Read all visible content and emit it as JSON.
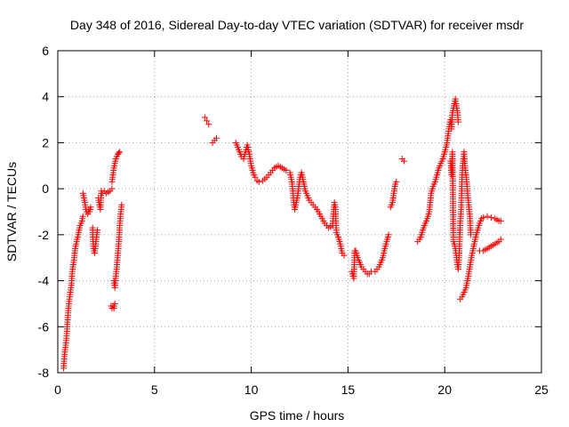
{
  "chart_data": {
    "type": "scatter",
    "title": "Day 348 of 2016, Sidereal Day-to-day VTEC variation (SDTVAR) for receiver msdr",
    "xlabel": "GPS time / hours",
    "ylabel": "SDTVAR / TECUs",
    "xlim": [
      0,
      25
    ],
    "ylim": [
      -8,
      6
    ],
    "xticks": [
      "0",
      "5",
      "10",
      "15",
      "20",
      "25"
    ],
    "yticks": [
      "-8",
      "-6",
      "-4",
      "-2",
      "0",
      "2",
      "4",
      "6"
    ],
    "grid": true,
    "marker": "+",
    "color": "#ff0000",
    "series": [
      {
        "name": "msdr",
        "segments": [
          [
            [
              0.3,
              -7.8
            ],
            [
              0.35,
              -7.2
            ],
            [
              0.45,
              -6.5
            ],
            [
              0.5,
              -5.8
            ],
            [
              0.55,
              -5.2
            ],
            [
              0.6,
              -4.8
            ],
            [
              0.7,
              -4.2
            ],
            [
              0.75,
              -3.6
            ],
            [
              0.85,
              -3.0
            ],
            [
              0.9,
              -2.6
            ],
            [
              1.0,
              -2.2
            ],
            [
              1.05,
              -2.0
            ],
            [
              1.1,
              -1.8
            ],
            [
              1.15,
              -1.6
            ],
            [
              1.2,
              -1.5
            ],
            [
              1.25,
              -1.4
            ],
            [
              1.3,
              -1.2
            ]
          ],
          [
            [
              1.3,
              -0.2
            ],
            [
              1.35,
              -0.4
            ],
            [
              1.4,
              -0.6
            ],
            [
              1.45,
              -0.9
            ],
            [
              1.5,
              -1.0
            ],
            [
              1.55,
              -1.1
            ],
            [
              1.6,
              -0.9
            ],
            [
              1.65,
              -1.0
            ],
            [
              1.7,
              -0.8
            ]
          ],
          [
            [
              1.8,
              -1.7
            ],
            [
              1.8,
              -2.0
            ],
            [
              1.85,
              -2.6
            ],
            [
              1.9,
              -2.8
            ],
            [
              1.95,
              -2.5
            ],
            [
              2.0,
              -2.1
            ],
            [
              2.05,
              -1.8
            ]
          ],
          [
            [
              2.1,
              -0.4
            ],
            [
              2.15,
              -0.7
            ],
            [
              2.2,
              -0.9
            ],
            [
              2.25,
              -0.1
            ],
            [
              2.3,
              -0.2
            ],
            [
              2.4,
              -0.1
            ],
            [
              2.5,
              -0.2
            ],
            [
              2.6,
              -0.15
            ],
            [
              2.7,
              -0.1
            ],
            [
              2.8,
              0.0
            ]
          ],
          [
            [
              2.75,
              -5.1
            ],
            [
              2.8,
              -5.2
            ],
            [
              2.85,
              -5.1
            ],
            [
              2.9,
              -5.2
            ],
            [
              2.95,
              -5.0
            ]
          ],
          [
            [
              2.8,
              0.3
            ],
            [
              2.85,
              0.6
            ],
            [
              2.9,
              0.9
            ],
            [
              2.95,
              1.1
            ],
            [
              3.0,
              1.3
            ],
            [
              3.05,
              1.4
            ],
            [
              3.1,
              1.5
            ],
            [
              3.15,
              1.55
            ],
            [
              3.2,
              1.6
            ]
          ],
          [
            [
              2.9,
              -4.0
            ],
            [
              2.95,
              -4.3
            ],
            [
              3.0,
              -3.8
            ],
            [
              3.05,
              -3.4
            ],
            [
              3.1,
              -2.9
            ],
            [
              3.15,
              -2.4
            ],
            [
              3.2,
              -1.6
            ],
            [
              3.25,
              -1.1
            ],
            [
              3.3,
              -0.7
            ]
          ],
          [
            [
              7.6,
              3.1
            ],
            [
              7.7,
              2.95
            ],
            [
              7.8,
              2.8
            ]
          ],
          [
            [
              8.0,
              2.0
            ],
            [
              8.1,
              2.1
            ],
            [
              8.2,
              2.2
            ]
          ],
          [
            [
              9.2,
              2.0
            ],
            [
              9.3,
              1.8
            ],
            [
              9.4,
              1.6
            ],
            [
              9.5,
              1.4
            ],
            [
              9.6,
              1.3
            ],
            [
              9.7,
              1.6
            ],
            [
              9.8,
              1.9
            ],
            [
              9.9,
              1.5
            ],
            [
              10.0,
              1.0
            ],
            [
              10.1,
              0.7
            ],
            [
              10.2,
              0.5
            ],
            [
              10.3,
              0.35
            ],
            [
              10.4,
              0.3
            ],
            [
              10.6,
              0.35
            ],
            [
              10.8,
              0.5
            ],
            [
              11.0,
              0.7
            ],
            [
              11.2,
              0.9
            ],
            [
              11.4,
              1.0
            ],
            [
              11.6,
              0.9
            ],
            [
              11.8,
              0.8
            ]
          ],
          [
            [
              12.0,
              0.7
            ],
            [
              12.1,
              0.3
            ],
            [
              12.15,
              -0.1
            ],
            [
              12.2,
              -0.6
            ],
            [
              12.25,
              -0.9
            ],
            [
              12.3,
              -0.7
            ],
            [
              12.4,
              -0.3
            ],
            [
              12.5,
              0.4
            ],
            [
              12.6,
              0.7
            ],
            [
              12.7,
              0.3
            ],
            [
              12.8,
              -0.1
            ],
            [
              12.9,
              -0.3
            ],
            [
              13.0,
              -0.5
            ],
            [
              13.2,
              -0.7
            ],
            [
              13.4,
              -0.9
            ],
            [
              13.6,
              -1.2
            ],
            [
              13.8,
              -1.5
            ],
            [
              14.0,
              -1.7
            ],
            [
              14.2,
              -1.6
            ],
            [
              14.3,
              -0.6
            ],
            [
              14.35,
              -0.8
            ],
            [
              14.4,
              -1.9
            ],
            [
              14.5,
              -2.1
            ],
            [
              14.6,
              -2.4
            ],
            [
              14.7,
              -2.8
            ],
            [
              14.8,
              -2.9
            ]
          ],
          [
            [
              15.2,
              -3.6
            ],
            [
              15.3,
              -3.9
            ],
            [
              15.35,
              -2.7
            ],
            [
              15.4,
              -2.7
            ],
            [
              15.5,
              -3.0
            ],
            [
              15.6,
              -3.2
            ],
            [
              15.7,
              -3.4
            ],
            [
              15.8,
              -3.5
            ],
            [
              15.9,
              -3.6
            ],
            [
              16.0,
              -3.7
            ],
            [
              16.1,
              -3.7
            ],
            [
              16.2,
              -3.6
            ],
            [
              16.4,
              -3.6
            ],
            [
              16.6,
              -3.4
            ],
            [
              16.8,
              -3.0
            ],
            [
              16.9,
              -2.6
            ],
            [
              17.0,
              -2.3
            ],
            [
              17.1,
              -2.0
            ]
          ],
          [
            [
              17.2,
              -0.8
            ],
            [
              17.3,
              -0.6
            ],
            [
              17.35,
              -0.3
            ],
            [
              17.4,
              0.0
            ],
            [
              17.45,
              0.2
            ],
            [
              17.5,
              0.3
            ]
          ],
          [
            [
              17.8,
              1.3
            ],
            [
              17.9,
              1.2
            ]
          ],
          [
            [
              18.6,
              -2.3
            ],
            [
              18.7,
              -2.2
            ],
            [
              18.8,
              -2.0
            ],
            [
              18.9,
              -1.7
            ],
            [
              19.0,
              -1.5
            ],
            [
              19.1,
              -1.3
            ],
            [
              19.2,
              -1.0
            ],
            [
              19.25,
              -0.6
            ],
            [
              19.3,
              -0.2
            ],
            [
              19.4,
              0.1
            ],
            [
              19.5,
              0.3
            ],
            [
              19.6,
              0.6
            ],
            [
              19.7,
              0.9
            ],
            [
              19.8,
              1.1
            ],
            [
              19.9,
              1.3
            ],
            [
              20.0,
              1.6
            ],
            [
              20.1,
              1.9
            ],
            [
              20.15,
              2.2
            ],
            [
              20.2,
              2.5
            ],
            [
              20.25,
              2.8
            ],
            [
              20.3,
              3.0
            ],
            [
              20.35,
              2.6
            ],
            [
              20.4,
              3.3
            ],
            [
              20.45,
              3.5
            ],
            [
              20.5,
              3.7
            ],
            [
              20.55,
              3.9
            ],
            [
              20.6,
              3.6
            ],
            [
              20.65,
              3.4
            ],
            [
              20.7,
              2.9
            ]
          ],
          [
            [
              20.3,
              1.2
            ],
            [
              20.35,
              0.6
            ],
            [
              20.4,
              1.6
            ],
            [
              20.45,
              -2.3
            ],
            [
              20.5,
              -2.4
            ],
            [
              20.55,
              -2.6
            ],
            [
              20.6,
              -2.9
            ],
            [
              20.65,
              -3.3
            ],
            [
              20.7,
              -3.5
            ],
            [
              20.75,
              -2.8
            ],
            [
              20.8,
              -1.5
            ],
            [
              20.85,
              -0.9
            ],
            [
              20.9,
              0.6
            ],
            [
              20.95,
              1.2
            ],
            [
              21.0,
              1.6
            ],
            [
              21.05,
              0.9
            ],
            [
              21.1,
              0.6
            ],
            [
              21.15,
              0.2
            ],
            [
              21.2,
              -0.4
            ],
            [
              21.25,
              -0.8
            ],
            [
              21.3,
              -1.2
            ],
            [
              21.35,
              -2.0
            ]
          ],
          [
            [
              20.8,
              -4.8
            ],
            [
              20.9,
              -4.7
            ],
            [
              21.0,
              -4.5
            ],
            [
              21.1,
              -4.3
            ],
            [
              21.2,
              -3.9
            ],
            [
              21.3,
              -3.4
            ],
            [
              21.4,
              -2.9
            ],
            [
              21.5,
              -2.5
            ],
            [
              21.6,
              -2.1
            ],
            [
              21.7,
              -1.8
            ],
            [
              21.8,
              -1.5
            ],
            [
              21.9,
              -1.3
            ],
            [
              22.0,
              -1.25
            ],
            [
              22.2,
              -1.2
            ],
            [
              22.4,
              -1.25
            ],
            [
              22.6,
              -1.3
            ],
            [
              22.8,
              -1.4
            ],
            [
              22.9,
              -1.4
            ]
          ],
          [
            [
              21.8,
              -2.7
            ],
            [
              22.0,
              -2.7
            ],
            [
              22.2,
              -2.6
            ],
            [
              22.4,
              -2.5
            ],
            [
              22.6,
              -2.4
            ],
            [
              22.8,
              -2.3
            ],
            [
              22.9,
              -2.2
            ]
          ]
        ]
      }
    ]
  }
}
